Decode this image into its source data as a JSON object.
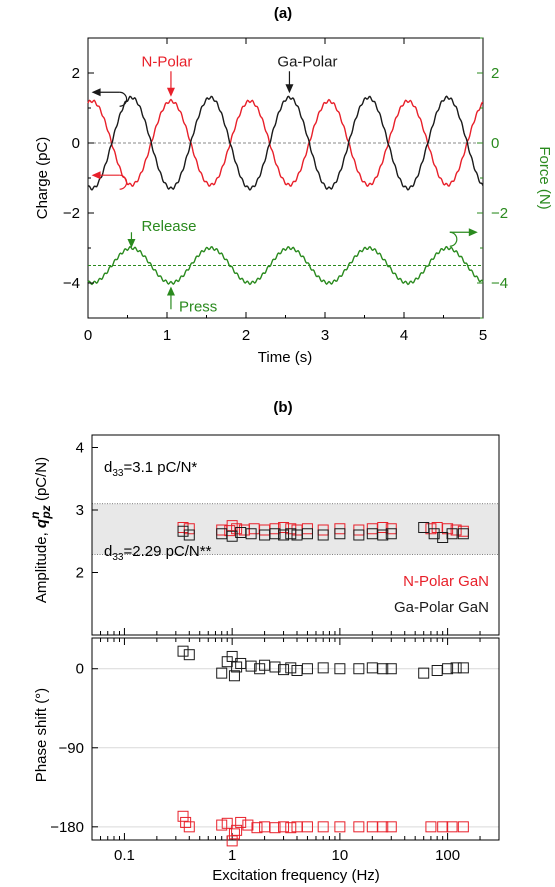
{
  "colors": {
    "n_polar": "#e8202a",
    "ga_polar": "#1a1a1a",
    "force": "#2a8a1e",
    "band": "#e8e8e8",
    "grid": "#d9d9d9"
  },
  "chart_data": [
    {
      "panel": "(a)",
      "type": "line",
      "title": "(a)",
      "xlabel": "Time (s)",
      "ylabel_left": "Charge (pC)",
      "ylabel_right": "Force (N)",
      "xlim": [
        0,
        5
      ],
      "ylim_left": [
        -5,
        3
      ],
      "ylim_right": [
        -5,
        3
      ],
      "xticks": [
        "0",
        "1",
        "2",
        "3",
        "4",
        "5"
      ],
      "yticks_left": [
        "2",
        "0",
        "−2",
        "−4"
      ],
      "yticks_right": [
        "2",
        "0",
        "−2",
        "−4"
      ],
      "grid": false,
      "series": [
        {
          "name": "N-Polar",
          "axis": "left",
          "amplitude": 1.2,
          "offset": 0,
          "period_s": 1.0,
          "peak_times_s": [
            0.05,
            1.05,
            2.05,
            3.05,
            4.05
          ],
          "x_start": 0,
          "x_end": 5
        },
        {
          "name": "Ga-Polar",
          "axis": "left",
          "amplitude": 1.3,
          "offset": 0,
          "period_s": 1.0,
          "peak_times_s": [
            0.55,
            1.55,
            2.55,
            3.55,
            4.55
          ],
          "x_start": 0,
          "x_end": 5
        },
        {
          "name": "Force",
          "axis": "right",
          "amplitude": 0.5,
          "offset": -3.5,
          "period_s": 1.0,
          "peak_times_s": [
            0.55,
            1.55,
            2.55,
            3.55,
            4.55
          ],
          "x_start": 0,
          "x_end": 5
        }
      ],
      "reference_lines": [
        {
          "axis": "left",
          "y": 0
        },
        {
          "axis": "right",
          "y": -3.5
        }
      ],
      "annotations": [
        {
          "text": "N-Polar",
          "color": "n_polar",
          "x": 1.05,
          "y": 2.3
        },
        {
          "text": "Ga-Polar",
          "color": "ga_polar",
          "x": 2.55,
          "y": 2.3
        },
        {
          "text": "Release",
          "color": "force",
          "x": 0.55,
          "y": -2.4
        },
        {
          "text": "Press",
          "color": "force",
          "x": 1.05,
          "y": -4.7
        }
      ]
    },
    {
      "panel": "(b) top",
      "type": "scatter",
      "title": "(b)",
      "xlabel": "",
      "ylabel": "Amplitude, q_pz^n (pC/N)",
      "xscale": "log",
      "xlim": [
        0.05,
        300
      ],
      "ylim": [
        1,
        4.2
      ],
      "yticks": [
        "4",
        "3",
        "2"
      ],
      "band": {
        "y1": 2.29,
        "y2": 3.1
      },
      "band_labels": [
        "d33=3.1 pC/N*",
        "d33=2.29 pC/N**"
      ],
      "legend": [
        "N-Polar GaN",
        "Ga-Polar GaN"
      ],
      "legend_placement": "bottom-right",
      "series": [
        {
          "name": "N-Polar GaN",
          "points": [
            [
              0.35,
              2.72
            ],
            [
              0.4,
              2.7
            ],
            [
              0.8,
              2.68
            ],
            [
              0.95,
              2.67
            ],
            [
              1.0,
              2.75
            ],
            [
              1.1,
              2.7
            ],
            [
              1.3,
              2.68
            ],
            [
              1.6,
              2.7
            ],
            [
              2.0,
              2.68
            ],
            [
              2.5,
              2.7
            ],
            [
              3.0,
              2.72
            ],
            [
              3.5,
              2.7
            ],
            [
              4.0,
              2.68
            ],
            [
              5.0,
              2.7
            ],
            [
              7.0,
              2.68
            ],
            [
              10.0,
              2.7
            ],
            [
              15.0,
              2.68
            ],
            [
              20.0,
              2.7
            ],
            [
              25.0,
              2.72
            ],
            [
              30.0,
              2.7
            ],
            [
              70.0,
              2.7
            ],
            [
              80.0,
              2.72
            ],
            [
              100.0,
              2.7
            ],
            [
              120.0,
              2.68
            ],
            [
              140.0,
              2.66
            ]
          ]
        },
        {
          "name": "Ga-Polar GaN",
          "points": [
            [
              0.35,
              2.66
            ],
            [
              0.4,
              2.6
            ],
            [
              0.8,
              2.62
            ],
            [
              1.0,
              2.58
            ],
            [
              1.2,
              2.64
            ],
            [
              1.5,
              2.62
            ],
            [
              2.0,
              2.6
            ],
            [
              2.5,
              2.62
            ],
            [
              3.0,
              2.6
            ],
            [
              3.5,
              2.62
            ],
            [
              4.0,
              2.6
            ],
            [
              5.0,
              2.62
            ],
            [
              7.0,
              2.6
            ],
            [
              10.0,
              2.62
            ],
            [
              15.0,
              2.6
            ],
            [
              20.0,
              2.62
            ],
            [
              25.0,
              2.6
            ],
            [
              30.0,
              2.62
            ],
            [
              60.0,
              2.72
            ],
            [
              75.0,
              2.62
            ],
            [
              90.0,
              2.56
            ],
            [
              110.0,
              2.62
            ],
            [
              140.0,
              2.62
            ]
          ]
        }
      ]
    },
    {
      "panel": "(b) bottom",
      "type": "scatter",
      "xlabel": "Excitation frequency (Hz)",
      "ylabel": "Phase shift (°)",
      "xscale": "log",
      "xlim": [
        0.05,
        300
      ],
      "ylim": [
        -195,
        35
      ],
      "xticks": [
        "0.1",
        "1",
        "10",
        "100"
      ],
      "yticks": [
        "0",
        "−90",
        "−180"
      ],
      "grid": true,
      "series": [
        {
          "name": "N-Polar GaN",
          "points": [
            [
              0.35,
              -168
            ],
            [
              0.37,
              -175
            ],
            [
              0.4,
              -180
            ],
            [
              0.8,
              -178
            ],
            [
              0.9,
              -176
            ],
            [
              1.0,
              -196
            ],
            [
              1.05,
              -188
            ],
            [
              1.1,
              -184
            ],
            [
              1.2,
              -175
            ],
            [
              1.4,
              -178
            ],
            [
              1.7,
              -181
            ],
            [
              2.0,
              -180
            ],
            [
              2.5,
              -181
            ],
            [
              3.0,
              -180
            ],
            [
              3.5,
              -181
            ],
            [
              4.0,
              -180
            ],
            [
              5.0,
              -180
            ],
            [
              7.0,
              -180
            ],
            [
              10.0,
              -180
            ],
            [
              15.0,
              -180
            ],
            [
              20.0,
              -180
            ],
            [
              25.0,
              -180
            ],
            [
              30.0,
              -180
            ],
            [
              70.0,
              -180
            ],
            [
              90.0,
              -180
            ],
            [
              110.0,
              -180
            ],
            [
              140.0,
              -180
            ]
          ]
        },
        {
          "name": "Ga-Polar GaN",
          "points": [
            [
              0.35,
              20
            ],
            [
              0.4,
              16
            ],
            [
              0.8,
              -5
            ],
            [
              0.9,
              8
            ],
            [
              1.0,
              14
            ],
            [
              1.05,
              -8
            ],
            [
              1.1,
              2
            ],
            [
              1.2,
              6
            ],
            [
              1.5,
              3
            ],
            [
              1.8,
              0
            ],
            [
              2.0,
              4
            ],
            [
              2.5,
              2
            ],
            [
              3.0,
              -1
            ],
            [
              3.5,
              1
            ],
            [
              4.0,
              -2
            ],
            [
              5.0,
              0
            ],
            [
              7.0,
              1
            ],
            [
              10.0,
              0
            ],
            [
              15.0,
              0
            ],
            [
              20.0,
              1
            ],
            [
              25.0,
              0
            ],
            [
              30.0,
              0
            ],
            [
              60.0,
              -5
            ],
            [
              80.0,
              -2
            ],
            [
              100.0,
              0
            ],
            [
              120.0,
              1
            ],
            [
              140.0,
              1
            ]
          ]
        }
      ]
    }
  ]
}
